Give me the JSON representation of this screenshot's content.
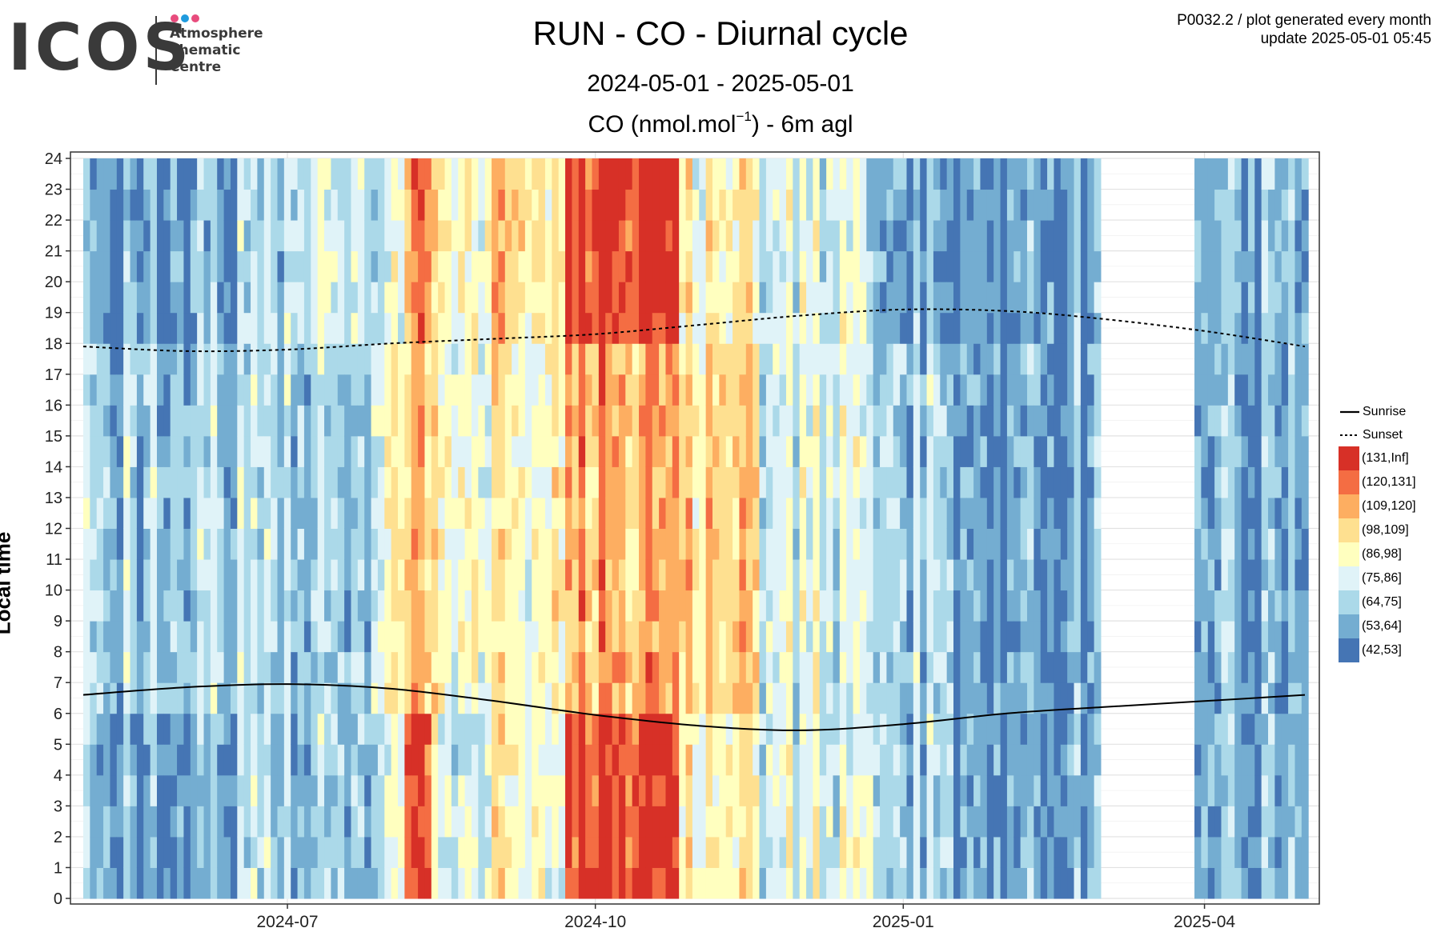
{
  "logo": {
    "wordmark": "ICOS",
    "lines": [
      "Atmosphere",
      "Thematic",
      "Centre"
    ],
    "dot_colors": [
      "#e84c7d",
      "#1f9bde",
      "#e84c7d"
    ]
  },
  "header": {
    "title": "RUN - CO - Diurnal cycle",
    "date_range": "2024-05-01 - 2025-05-01",
    "unit_prefix": "CO (nmol.mol",
    "unit_exp": "−1",
    "unit_suffix": ") - 6m agl",
    "plot_id": "P0032.2 / plot generated every month",
    "update": "update  2025-05-01 05:45"
  },
  "chart_data": {
    "type": "heatmap",
    "title": "RUN - CO - Diurnal cycle",
    "subtitle": "2024-05-01 - 2025-05-01",
    "value_label": "CO (nmol.mol−1) - 6m agl",
    "xlabel": "",
    "ylabel": "Local time",
    "x_range": [
      "2024-05-01",
      "2025-05-01"
    ],
    "y_range": [
      0,
      24
    ],
    "y_ticks": [
      0,
      1,
      2,
      3,
      4,
      5,
      6,
      7,
      8,
      9,
      10,
      11,
      12,
      13,
      14,
      15,
      16,
      17,
      18,
      19,
      20,
      21,
      22,
      23,
      24
    ],
    "x_ticks": [
      {
        "date": "2024-07-01",
        "label": "2024-07"
      },
      {
        "date": "2024-10-01",
        "label": "2024-10"
      },
      {
        "date": "2025-01-01",
        "label": "2025-01"
      },
      {
        "date": "2025-04-01",
        "label": "2025-04"
      }
    ],
    "grid": true,
    "legend_position": "right",
    "bins": [
      {
        "label": "(131,Inf]",
        "color": "#d73027"
      },
      {
        "label": "(120,131]",
        "color": "#f46d43"
      },
      {
        "label": "(109,120]",
        "color": "#fdae61"
      },
      {
        "label": "(98,109]",
        "color": "#fee090"
      },
      {
        "label": "(86,98]",
        "color": "#ffffbf"
      },
      {
        "label": "(75,86]",
        "color": "#e0f3f8"
      },
      {
        "label": "(64,75]",
        "color": "#abd9e9"
      },
      {
        "label": "(53,64]",
        "color": "#74add1"
      },
      {
        "label": "(42,53]",
        "color": "#4575b4"
      }
    ],
    "missing_periods": [
      {
        "start": "2024-07-01",
        "end": "2024-07-02"
      },
      {
        "start": "2025-03-01",
        "end": "2025-03-28"
      }
    ],
    "daily_profile_bins": {
      "note_units": "bin index into bins[] (0=highest) for each period, by hour group",
      "periods": [
        {
          "start": "2024-05-01",
          "end": "2024-05-20",
          "night": 7,
          "day": 6,
          "evening": 7
        },
        {
          "start": "2024-05-20",
          "end": "2024-06-15",
          "night": 7,
          "day": 6,
          "evening": 7
        },
        {
          "start": "2024-06-15",
          "end": "2024-07-01",
          "night": 6,
          "day": 6,
          "evening": 6
        },
        {
          "start": "2024-07-02",
          "end": "2024-07-25",
          "night": 6,
          "day": 6,
          "evening": 5
        },
        {
          "start": "2024-07-25",
          "end": "2024-08-05",
          "night": 5,
          "day": 4,
          "evening": 5
        },
        {
          "start": "2024-08-05",
          "end": "2024-08-12",
          "night": 0,
          "day": 2,
          "evening": 1
        },
        {
          "start": "2024-08-12",
          "end": "2024-08-28",
          "night": 5,
          "day": 4,
          "evening": 4
        },
        {
          "start": "2024-08-28",
          "end": "2024-09-15",
          "night": 4,
          "day": 4,
          "evening": 3
        },
        {
          "start": "2024-09-15",
          "end": "2024-09-22",
          "night": 4,
          "day": 3,
          "evening": 3
        },
        {
          "start": "2024-09-22",
          "end": "2024-10-25",
          "night": 0,
          "day": 2,
          "evening": 0
        },
        {
          "start": "2024-10-25",
          "end": "2024-11-18",
          "night": 4,
          "day": 3,
          "evening": 4
        },
        {
          "start": "2024-11-18",
          "end": "2024-12-20",
          "night": 5,
          "day": 5,
          "evening": 5
        },
        {
          "start": "2024-12-20",
          "end": "2025-01-15",
          "night": 6,
          "day": 6,
          "evening": 7
        },
        {
          "start": "2025-01-15",
          "end": "2025-03-01",
          "night": 7,
          "day": 7,
          "evening": 7
        },
        {
          "start": "2025-03-28",
          "end": "2025-05-01",
          "night": 7,
          "day": 7,
          "evening": 7
        }
      ]
    },
    "sunrise": {
      "label": "Sunrise",
      "points": [
        {
          "date": "2024-05-01",
          "hour": 6.6
        },
        {
          "date": "2024-06-01",
          "hour": 6.85
        },
        {
          "date": "2024-07-01",
          "hour": 6.95
        },
        {
          "date": "2024-08-01",
          "hour": 6.8
        },
        {
          "date": "2024-09-01",
          "hour": 6.4
        },
        {
          "date": "2024-10-01",
          "hour": 5.95
        },
        {
          "date": "2024-11-01",
          "hour": 5.6
        },
        {
          "date": "2024-12-01",
          "hour": 5.45
        },
        {
          "date": "2025-01-01",
          "hour": 5.65
        },
        {
          "date": "2025-02-01",
          "hour": 6.0
        },
        {
          "date": "2025-03-01",
          "hour": 6.2
        },
        {
          "date": "2025-04-01",
          "hour": 6.4
        },
        {
          "date": "2025-05-01",
          "hour": 6.6
        }
      ]
    },
    "sunset": {
      "label": "Sunset",
      "points": [
        {
          "date": "2024-05-01",
          "hour": 17.9
        },
        {
          "date": "2024-06-01",
          "hour": 17.75
        },
        {
          "date": "2024-07-01",
          "hour": 17.8
        },
        {
          "date": "2024-08-01",
          "hour": 18.0
        },
        {
          "date": "2024-09-01",
          "hour": 18.15
        },
        {
          "date": "2024-10-01",
          "hour": 18.3
        },
        {
          "date": "2024-11-01",
          "hour": 18.6
        },
        {
          "date": "2024-12-01",
          "hour": 18.9
        },
        {
          "date": "2025-01-01",
          "hour": 19.1
        },
        {
          "date": "2025-02-01",
          "hour": 19.05
        },
        {
          "date": "2025-03-01",
          "hour": 18.8
        },
        {
          "date": "2025-04-01",
          "hour": 18.4
        },
        {
          "date": "2025-05-01",
          "hour": 17.9
        }
      ]
    }
  }
}
